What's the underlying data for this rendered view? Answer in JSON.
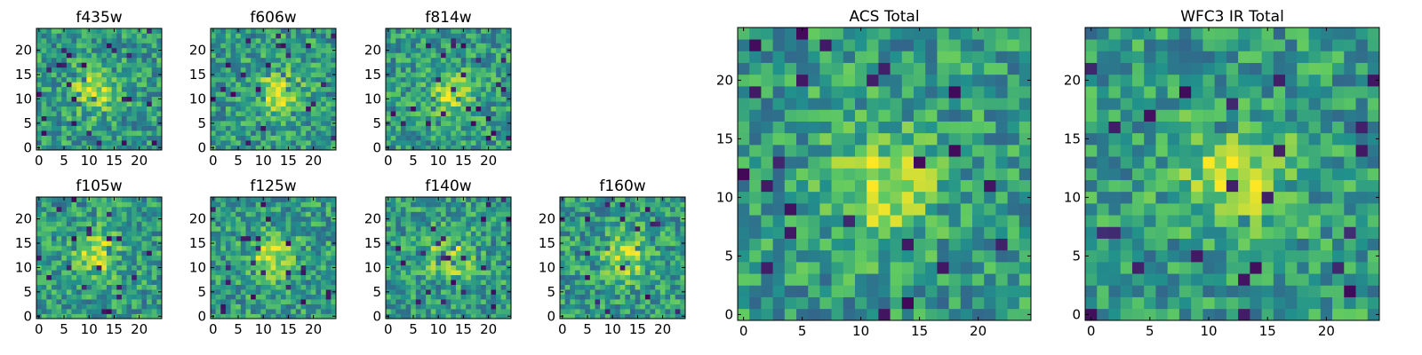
{
  "figure": {
    "title": ""
  },
  "chart_data": [
    {
      "id": "f435w",
      "type": "heatmap",
      "title": "f435w",
      "grid_size": 25,
      "xticks": [
        0,
        5,
        10,
        15,
        20
      ],
      "yticks": [
        0,
        5,
        10,
        15,
        20
      ],
      "xlim": [
        -0.5,
        24.5
      ],
      "ylim": [
        -0.5,
        24.5
      ],
      "colormap": "viridis",
      "vmin": 0,
      "vmax": 1,
      "value_description": "normalized pixel intensity, noisy field with faint central source",
      "peak": {
        "x": 11,
        "y": 12
      },
      "seed": 435
    },
    {
      "id": "f606w",
      "type": "heatmap",
      "title": "f606w",
      "grid_size": 25,
      "xticks": [
        0,
        5,
        10,
        15,
        20
      ],
      "yticks": [
        0,
        5,
        10,
        15,
        20
      ],
      "xlim": [
        -0.5,
        24.5
      ],
      "ylim": [
        -0.5,
        24.5
      ],
      "colormap": "viridis",
      "vmin": 0,
      "vmax": 1,
      "peak": {
        "x": 13,
        "y": 11
      },
      "seed": 606
    },
    {
      "id": "f814w",
      "type": "heatmap",
      "title": "f814w",
      "grid_size": 25,
      "xticks": [
        0,
        5,
        10,
        15,
        20
      ],
      "yticks": [
        0,
        5,
        10,
        15,
        20
      ],
      "xlim": [
        -0.5,
        24.5
      ],
      "ylim": [
        -0.5,
        24.5
      ],
      "colormap": "viridis",
      "vmin": 0,
      "vmax": 1,
      "peak": {
        "x": 13,
        "y": 11
      },
      "seed": 814
    },
    {
      "id": "f105w",
      "type": "heatmap",
      "title": "f105w",
      "grid_size": 25,
      "xticks": [
        0,
        5,
        10,
        15,
        20
      ],
      "yticks": [
        0,
        5,
        10,
        15,
        20
      ],
      "xlim": [
        -0.5,
        24.5
      ],
      "ylim": [
        -0.5,
        24.5
      ],
      "colormap": "viridis",
      "vmin": 0,
      "vmax": 1,
      "peak": {
        "x": 12,
        "y": 13
      },
      "seed": 105
    },
    {
      "id": "f125w",
      "type": "heatmap",
      "title": "f125w",
      "grid_size": 25,
      "xticks": [
        0,
        5,
        10,
        15,
        20
      ],
      "yticks": [
        0,
        5,
        10,
        15,
        20
      ],
      "xlim": [
        -0.5,
        24.5
      ],
      "ylim": [
        -0.5,
        24.5
      ],
      "colormap": "viridis",
      "vmin": 0,
      "vmax": 1,
      "peak": {
        "x": 12,
        "y": 12
      },
      "seed": 125
    },
    {
      "id": "f140w",
      "type": "heatmap",
      "title": "f140w",
      "grid_size": 25,
      "xticks": [
        0,
        5,
        10,
        15,
        20
      ],
      "yticks": [
        0,
        5,
        10,
        15,
        20
      ],
      "xlim": [
        -0.5,
        24.5
      ],
      "ylim": [
        -0.5,
        24.5
      ],
      "colormap": "viridis",
      "vmin": 0,
      "vmax": 1,
      "peak": {
        "x": 12,
        "y": 12
      },
      "seed": 140
    },
    {
      "id": "f160w",
      "type": "heatmap",
      "title": "f160w",
      "grid_size": 25,
      "xticks": [
        0,
        5,
        10,
        15,
        20
      ],
      "yticks": [
        0,
        5,
        10,
        15,
        20
      ],
      "xlim": [
        -0.5,
        24.5
      ],
      "ylim": [
        -0.5,
        24.5
      ],
      "colormap": "viridis",
      "vmin": 0,
      "vmax": 1,
      "peak": {
        "x": 13,
        "y": 12
      },
      "seed": 160
    },
    {
      "id": "acs-total",
      "type": "heatmap",
      "title": "ACS Total",
      "grid_size": 25,
      "xticks": [
        0,
        5,
        10,
        15,
        20
      ],
      "yticks": [
        0,
        5,
        10,
        15,
        20
      ],
      "xlim": [
        -0.5,
        24.5
      ],
      "ylim": [
        -0.5,
        24.5
      ],
      "colormap": "viridis",
      "vmin": 0,
      "vmax": 1,
      "peak": {
        "x": 12,
        "y": 11
      },
      "seed": 999
    },
    {
      "id": "wfc3-ir-total",
      "type": "heatmap",
      "title": "WFC3 IR Total",
      "grid_size": 25,
      "xticks": [
        0,
        5,
        10,
        15,
        20
      ],
      "yticks": [
        0,
        5,
        10,
        15,
        20
      ],
      "xlim": [
        -0.5,
        24.5
      ],
      "ylim": [
        -0.5,
        24.5
      ],
      "colormap": "viridis",
      "vmin": 0,
      "vmax": 1,
      "peak": {
        "x": 12,
        "y": 12
      },
      "seed": 777
    }
  ],
  "colors": {
    "viridis_stops": [
      "#440154",
      "#3b528b",
      "#21918c",
      "#5ec962",
      "#fde725"
    ]
  }
}
